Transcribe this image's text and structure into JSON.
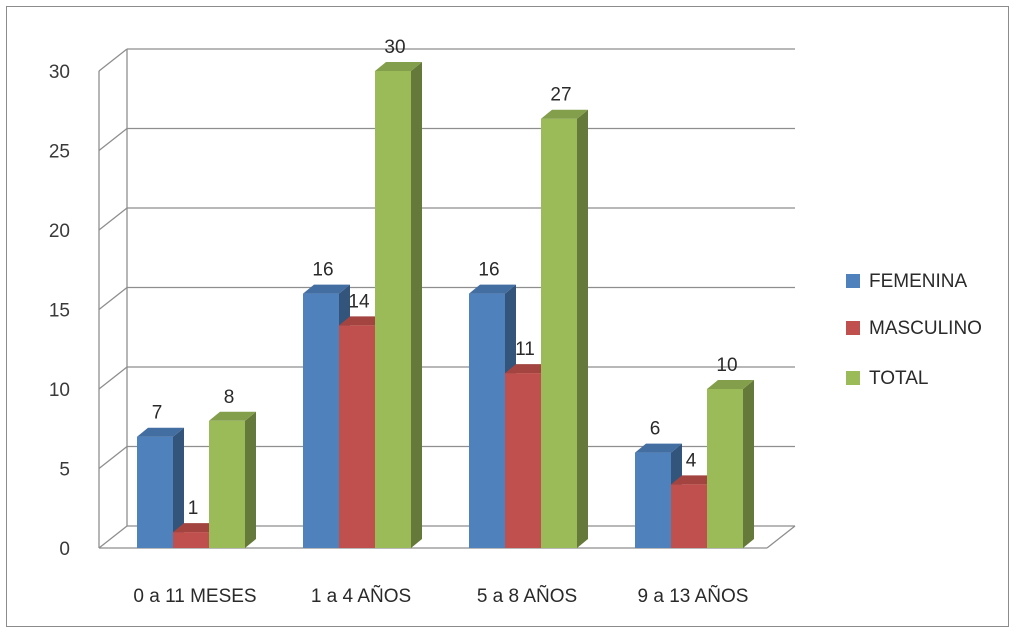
{
  "chart_data": {
    "type": "bar",
    "categories": [
      "0 a 11 MESES",
      "1 a 4 AÑOS",
      "5 a 8 AÑOS",
      "9 a 13 AÑOS"
    ],
    "series": [
      {
        "name": "FEMENINA",
        "values": [
          7,
          16,
          16,
          6
        ],
        "color": "#4f81bd"
      },
      {
        "name": "MASCULINO",
        "values": [
          1,
          14,
          11,
          4
        ],
        "color": "#c0504d"
      },
      {
        "name": "TOTAL",
        "values": [
          8,
          30,
          27,
          10
        ],
        "color": "#9bbb59"
      }
    ],
    "y_ticks": [
      "0",
      "5",
      "10",
      "15",
      "20",
      "25",
      "30"
    ],
    "ylim": [
      0,
      30
    ],
    "grid": true,
    "legend_position": "right",
    "style": "3d-clustered-column"
  }
}
